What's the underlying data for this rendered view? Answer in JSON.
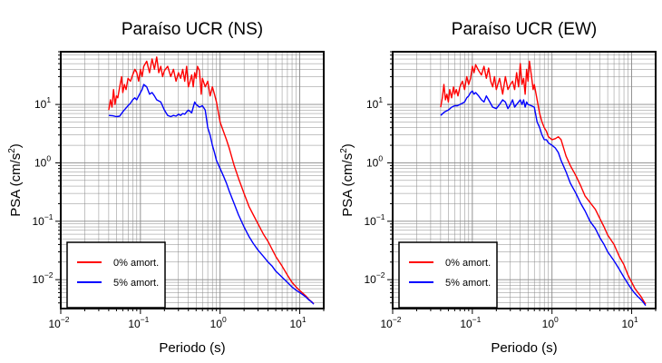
{
  "figure": {
    "colors": {
      "zeta0": "#ff0000",
      "zeta5": "#0000ff",
      "grid": "#888888",
      "frame": "#000000"
    }
  },
  "chart_data": [
    {
      "type": "line",
      "title": "Paraíso UCR (NS)",
      "xlabel": "Periodo (s)",
      "ylabel_main": "PSA (cm/s",
      "ylabel_sup": "2",
      "ylabel_close": ")",
      "xscale": "log",
      "yscale": "log",
      "xlim": [
        0.01,
        20
      ],
      "ylim": [
        0.0032,
        80
      ],
      "grid": true,
      "x_ticks": [
        {
          "base": "10",
          "exp": "−2"
        },
        {
          "base": "10",
          "exp": "−1"
        },
        {
          "base": "10",
          "exp": "0"
        },
        {
          "base": "10",
          "exp": "1"
        }
      ],
      "y_ticks": [
        {
          "base": "10",
          "exp": "−2"
        },
        {
          "base": "10",
          "exp": "−1"
        },
        {
          "base": "10",
          "exp": "0"
        },
        {
          "base": "10",
          "exp": "1"
        }
      ],
      "legend_position": "bottom-left",
      "series": [
        {
          "name": "0% amort.",
          "color": "#ff0000",
          "x": [
            0.04,
            0.042,
            0.044,
            0.046,
            0.048,
            0.05,
            0.052,
            0.055,
            0.058,
            0.06,
            0.063,
            0.066,
            0.07,
            0.075,
            0.08,
            0.085,
            0.09,
            0.095,
            0.1,
            0.105,
            0.11,
            0.12,
            0.13,
            0.14,
            0.15,
            0.16,
            0.17,
            0.18,
            0.19,
            0.2,
            0.22,
            0.24,
            0.26,
            0.28,
            0.3,
            0.32,
            0.34,
            0.36,
            0.38,
            0.4,
            0.42,
            0.44,
            0.46,
            0.48,
            0.5,
            0.52,
            0.55,
            0.58,
            0.6,
            0.65,
            0.7,
            0.75,
            0.8,
            0.85,
            0.9,
            1.0,
            1.1,
            1.2,
            1.3,
            1.5,
            1.7,
            2.0,
            2.3,
            2.6,
            3.0,
            3.5,
            4.0,
            4.5,
            5.0,
            6.0,
            7.0,
            8.0,
            9.0,
            10.0,
            11.0,
            12.0,
            13.0,
            14.0,
            15.0
          ],
          "y": [
            8,
            12,
            9,
            18,
            10,
            14,
            13,
            20,
            30,
            16,
            22,
            18,
            28,
            25,
            32,
            40,
            35,
            25,
            40,
            30,
            45,
            55,
            35,
            60,
            40,
            65,
            35,
            45,
            30,
            38,
            45,
            30,
            40,
            25,
            35,
            28,
            40,
            25,
            45,
            20,
            25,
            32,
            20,
            35,
            28,
            45,
            38,
            15,
            28,
            20,
            25,
            14,
            20,
            15,
            11,
            5,
            3.5,
            2.5,
            1.8,
            0.9,
            0.55,
            0.3,
            0.18,
            0.13,
            0.09,
            0.06,
            0.045,
            0.033,
            0.025,
            0.017,
            0.012,
            0.009,
            0.0075,
            0.0065,
            0.0058,
            0.0052,
            0.0046,
            0.0042,
            0.0039
          ]
        },
        {
          "name": "5% amort.",
          "color": "#0000ff",
          "x": [
            0.04,
            0.045,
            0.05,
            0.055,
            0.06,
            0.065,
            0.07,
            0.075,
            0.08,
            0.085,
            0.09,
            0.095,
            0.1,
            0.105,
            0.11,
            0.12,
            0.13,
            0.14,
            0.15,
            0.16,
            0.18,
            0.2,
            0.22,
            0.24,
            0.26,
            0.28,
            0.3,
            0.32,
            0.34,
            0.36,
            0.38,
            0.4,
            0.42,
            0.44,
            0.46,
            0.48,
            0.5,
            0.55,
            0.6,
            0.65,
            0.7,
            0.75,
            0.8,
            0.85,
            0.9,
            1.0,
            1.1,
            1.2,
            1.3,
            1.5,
            1.7,
            2.0,
            2.3,
            2.6,
            3.0,
            3.5,
            4.0,
            4.5,
            5.0,
            6.0,
            7.0,
            8.0,
            9.0,
            10.0,
            11.0,
            12.0,
            13.0,
            14.0,
            15.0
          ],
          "y": [
            6.5,
            6.4,
            6.2,
            6.3,
            7.5,
            8.5,
            9.5,
            10.5,
            12,
            13,
            12,
            14,
            16,
            18,
            22,
            20,
            15,
            16,
            14,
            12,
            11,
            8,
            6.5,
            6.2,
            6.5,
            6.3,
            6.8,
            6.5,
            7,
            6.8,
            7.5,
            8,
            7.6,
            7.2,
            9,
            11,
            10,
            9,
            9.5,
            8,
            4,
            3,
            2,
            1.5,
            1.1,
            0.8,
            0.6,
            0.45,
            0.33,
            0.2,
            0.13,
            0.08,
            0.055,
            0.042,
            0.032,
            0.025,
            0.02,
            0.017,
            0.014,
            0.011,
            0.009,
            0.0075,
            0.0066,
            0.006,
            0.0055,
            0.005,
            0.0045,
            0.0042,
            0.0038
          ]
        }
      ]
    },
    {
      "type": "line",
      "title": "Paraíso UCR (EW)",
      "xlabel": "Periodo (s)",
      "ylabel_main": "PSA (cm/s",
      "ylabel_sup": "2",
      "ylabel_close": ")",
      "xscale": "log",
      "yscale": "log",
      "xlim": [
        0.01,
        20
      ],
      "ylim": [
        0.0032,
        80
      ],
      "grid": true,
      "x_ticks": [
        {
          "base": "10",
          "exp": "−2"
        },
        {
          "base": "10",
          "exp": "−1"
        },
        {
          "base": "10",
          "exp": "0"
        },
        {
          "base": "10",
          "exp": "1"
        }
      ],
      "y_ticks": [
        {
          "base": "10",
          "exp": "−2"
        },
        {
          "base": "10",
          "exp": "−1"
        },
        {
          "base": "10",
          "exp": "0"
        },
        {
          "base": "10",
          "exp": "1"
        }
      ],
      "legend_position": "bottom-left",
      "series": [
        {
          "name": "0% amort.",
          "color": "#ff0000",
          "x": [
            0.04,
            0.042,
            0.044,
            0.046,
            0.048,
            0.05,
            0.052,
            0.055,
            0.058,
            0.06,
            0.063,
            0.066,
            0.07,
            0.075,
            0.08,
            0.085,
            0.09,
            0.095,
            0.1,
            0.105,
            0.11,
            0.12,
            0.13,
            0.14,
            0.15,
            0.16,
            0.17,
            0.18,
            0.19,
            0.2,
            0.22,
            0.24,
            0.26,
            0.28,
            0.3,
            0.32,
            0.34,
            0.36,
            0.38,
            0.4,
            0.42,
            0.44,
            0.46,
            0.48,
            0.5,
            0.52,
            0.55,
            0.58,
            0.6,
            0.65,
            0.7,
            0.75,
            0.8,
            0.85,
            0.9,
            1.0,
            1.1,
            1.2,
            1.3,
            1.5,
            1.7,
            2.0,
            2.3,
            2.6,
            3.0,
            3.5,
            4.0,
            4.5,
            5.0,
            6.0,
            7.0,
            8.0,
            9.0,
            10.0,
            11.0,
            12.0,
            13.0,
            14.0,
            15.0
          ],
          "y": [
            9,
            13,
            22,
            12,
            15,
            11,
            18,
            13,
            20,
            15,
            18,
            14,
            20,
            25,
            18,
            30,
            22,
            28,
            45,
            35,
            48,
            38,
            32,
            45,
            28,
            42,
            25,
            20,
            30,
            18,
            28,
            15,
            30,
            18,
            22,
            25,
            18,
            35,
            20,
            50,
            22,
            28,
            15,
            40,
            25,
            55,
            32,
            18,
            22,
            12,
            7,
            5,
            4,
            3.5,
            2.8,
            2.5,
            2.6,
            2.8,
            2.5,
            1.3,
            0.9,
            0.6,
            0.4,
            0.27,
            0.21,
            0.16,
            0.11,
            0.08,
            0.058,
            0.04,
            0.025,
            0.018,
            0.012,
            0.009,
            0.007,
            0.006,
            0.0052,
            0.0044,
            0.0038
          ]
        },
        {
          "name": "5% amort.",
          "color": "#0000ff",
          "x": [
            0.04,
            0.045,
            0.05,
            0.055,
            0.06,
            0.065,
            0.07,
            0.075,
            0.08,
            0.085,
            0.09,
            0.095,
            0.1,
            0.105,
            0.11,
            0.12,
            0.13,
            0.14,
            0.15,
            0.16,
            0.18,
            0.2,
            0.22,
            0.24,
            0.26,
            0.28,
            0.3,
            0.32,
            0.34,
            0.36,
            0.38,
            0.4,
            0.42,
            0.44,
            0.46,
            0.48,
            0.5,
            0.55,
            0.6,
            0.65,
            0.7,
            0.75,
            0.8,
            0.85,
            0.9,
            1.0,
            1.1,
            1.2,
            1.3,
            1.5,
            1.7,
            2.0,
            2.3,
            2.6,
            3.0,
            3.5,
            4.0,
            4.5,
            5.0,
            6.0,
            7.0,
            8.0,
            9.0,
            10.0,
            11.0,
            12.0,
            13.0,
            14.0,
            15.0
          ],
          "y": [
            6.5,
            7.5,
            8,
            9,
            9.5,
            9.5,
            10,
            10.5,
            11,
            13,
            14,
            16,
            17,
            15,
            16,
            14,
            12,
            11,
            14,
            12,
            9,
            8.5,
            10,
            12,
            11,
            8.5,
            10,
            12,
            9,
            10,
            11,
            12,
            10,
            12,
            9,
            11,
            10,
            9.5,
            9,
            5,
            4,
            3,
            2.5,
            2.5,
            2.2,
            2,
            1.8,
            1.5,
            1.1,
            0.7,
            0.45,
            0.3,
            0.2,
            0.15,
            0.1,
            0.075,
            0.052,
            0.04,
            0.03,
            0.021,
            0.015,
            0.011,
            0.0085,
            0.0068,
            0.0058,
            0.0051,
            0.0046,
            0.0041,
            0.0036
          ]
        }
      ]
    }
  ]
}
